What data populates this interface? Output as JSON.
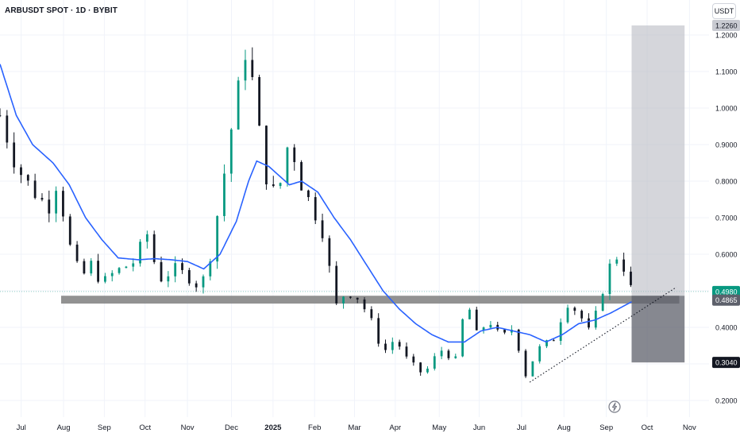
{
  "header": {
    "symbol_title": "ARBUSDT SPOT · 1D · BYBIT",
    "currency_label": "USDT"
  },
  "colors": {
    "background": "#ffffff",
    "grid": "#f0f3fa",
    "up_candle": "#089981",
    "down_candle": "#131722",
    "moving_average": "#2962ff",
    "support_zone": "#7f7f7f",
    "target_zone": "#b2b5be",
    "stop_zone": "#5d606b",
    "current_price_tag": "#089981",
    "trendline": "#131722"
  },
  "chart_data": {
    "type": "candlestick",
    "symbol": "ARBUSDT",
    "exchange": "BYBIT",
    "interval": "1D",
    "x_axis_labels": [
      "Jul",
      "Aug",
      "Sep",
      "Oct",
      "Nov",
      "Dec",
      "2025",
      "Feb",
      "Mar",
      "Apr",
      "May",
      "Jun",
      "Jul",
      "Aug",
      "Sep",
      "Oct",
      "Nov"
    ],
    "y_axis_ticks": [
      "1.2000",
      "1.1000",
      "1.0000",
      "0.9000",
      "0.8000",
      "0.7000",
      "0.6000",
      "0.4000",
      "0.3000",
      "0.2000"
    ],
    "y_axis_tick_values": [
      1.2,
      1.1,
      1.0,
      0.9,
      0.8,
      0.7,
      0.6,
      0.4,
      0.3,
      0.2
    ],
    "ylim": [
      0.18,
      1.26
    ],
    "price_tags": {
      "target": {
        "label": "1.2260",
        "value": 1.226
      },
      "current": {
        "label": "0.4980",
        "value": 0.498
      },
      "entry": {
        "label": "0.4865",
        "value": 0.4865
      },
      "stop": {
        "label": "0.3040",
        "value": 0.304
      }
    },
    "close_series_anchors": [
      {
        "t": 0.0,
        "v": 0.98
      },
      {
        "t": 2.0,
        "v": 0.84
      },
      {
        "t": 4.5,
        "v": 0.76
      },
      {
        "t": 6.0,
        "v": 0.73
      },
      {
        "t": 7.0,
        "v": 0.8
      },
      {
        "t": 8.6,
        "v": 0.62
      },
      {
        "t": 10.0,
        "v": 0.53
      },
      {
        "t": 11.0,
        "v": 0.58
      },
      {
        "t": 12.5,
        "v": 0.52
      },
      {
        "t": 14.0,
        "v": 0.55
      },
      {
        "t": 16.5,
        "v": 0.58
      },
      {
        "t": 18.0,
        "v": 0.66
      },
      {
        "t": 19.5,
        "v": 0.53
      },
      {
        "t": 21.5,
        "v": 0.56
      },
      {
        "t": 23.0,
        "v": 0.54
      },
      {
        "t": 24.5,
        "v": 0.51
      },
      {
        "t": 25.5,
        "v": 0.56
      },
      {
        "t": 27.0,
        "v": 0.75
      },
      {
        "t": 28.5,
        "v": 0.96
      },
      {
        "t": 30.3,
        "v": 1.18
      },
      {
        "t": 31.3,
        "v": 1.02
      },
      {
        "t": 32.5,
        "v": 0.82
      },
      {
        "t": 34.0,
        "v": 0.75
      },
      {
        "t": 35.5,
        "v": 0.92
      },
      {
        "t": 37.0,
        "v": 0.79
      },
      {
        "t": 38.5,
        "v": 0.72
      },
      {
        "t": 40.0,
        "v": 0.64
      },
      {
        "t": 41.0,
        "v": 0.45
      },
      {
        "t": 42.5,
        "v": 0.5
      },
      {
        "t": 44.0,
        "v": 0.48
      },
      {
        "t": 45.5,
        "v": 0.42
      },
      {
        "t": 47.0,
        "v": 0.33
      },
      {
        "t": 48.5,
        "v": 0.37
      },
      {
        "t": 50.0,
        "v": 0.31
      },
      {
        "t": 52.0,
        "v": 0.27
      },
      {
        "t": 54.0,
        "v": 0.34
      },
      {
        "t": 56.0,
        "v": 0.31
      },
      {
        "t": 57.2,
        "v": 0.48
      },
      {
        "t": 58.5,
        "v": 0.38
      },
      {
        "t": 60.0,
        "v": 0.42
      },
      {
        "t": 61.5,
        "v": 0.37
      },
      {
        "t": 63.0,
        "v": 0.4
      },
      {
        "t": 64.5,
        "v": 0.27
      },
      {
        "t": 66.0,
        "v": 0.34
      },
      {
        "t": 68.0,
        "v": 0.37
      },
      {
        "t": 69.5,
        "v": 0.47
      },
      {
        "t": 71.0,
        "v": 0.44
      },
      {
        "t": 72.5,
        "v": 0.38
      },
      {
        "t": 73.5,
        "v": 0.47
      },
      {
        "t": 75.0,
        "v": 0.58
      },
      {
        "t": 76.0,
        "v": 0.6
      },
      {
        "t": 77.5,
        "v": 0.5
      }
    ],
    "moving_average_anchors": [
      {
        "t": 0.0,
        "v": 1.12
      },
      {
        "t": 2.0,
        "v": 0.98
      },
      {
        "t": 4.0,
        "v": 0.9
      },
      {
        "t": 6.5,
        "v": 0.85
      },
      {
        "t": 8.5,
        "v": 0.79
      },
      {
        "t": 10.5,
        "v": 0.7
      },
      {
        "t": 12.5,
        "v": 0.64
      },
      {
        "t": 14.5,
        "v": 0.59
      },
      {
        "t": 17.0,
        "v": 0.585
      },
      {
        "t": 19.0,
        "v": 0.588
      },
      {
        "t": 21.0,
        "v": 0.585
      },
      {
        "t": 23.0,
        "v": 0.58
      },
      {
        "t": 25.0,
        "v": 0.56
      },
      {
        "t": 27.0,
        "v": 0.6
      },
      {
        "t": 29.0,
        "v": 0.69
      },
      {
        "t": 30.5,
        "v": 0.8
      },
      {
        "t": 31.5,
        "v": 0.855
      },
      {
        "t": 33.0,
        "v": 0.84
      },
      {
        "t": 34.5,
        "v": 0.81
      },
      {
        "t": 35.5,
        "v": 0.79
      },
      {
        "t": 37.0,
        "v": 0.8
      },
      {
        "t": 39.0,
        "v": 0.77
      },
      {
        "t": 41.0,
        "v": 0.7
      },
      {
        "t": 43.0,
        "v": 0.64
      },
      {
        "t": 45.0,
        "v": 0.57
      },
      {
        "t": 47.0,
        "v": 0.5
      },
      {
        "t": 49.0,
        "v": 0.45
      },
      {
        "t": 51.0,
        "v": 0.41
      },
      {
        "t": 53.0,
        "v": 0.38
      },
      {
        "t": 55.0,
        "v": 0.36
      },
      {
        "t": 57.0,
        "v": 0.36
      },
      {
        "t": 59.0,
        "v": 0.39
      },
      {
        "t": 61.0,
        "v": 0.4
      },
      {
        "t": 63.0,
        "v": 0.39
      },
      {
        "t": 65.0,
        "v": 0.38
      },
      {
        "t": 67.0,
        "v": 0.36
      },
      {
        "t": 69.0,
        "v": 0.38
      },
      {
        "t": 71.0,
        "v": 0.41
      },
      {
        "t": 73.0,
        "v": 0.42
      },
      {
        "t": 75.0,
        "v": 0.44
      },
      {
        "t": 77.5,
        "v": 0.47
      }
    ],
    "support_zone": {
      "from_t": 7.5,
      "to_t": 77.5,
      "low": 0.465,
      "high": 0.4865
    },
    "position": {
      "from_t": 77.5,
      "to_t": 84.0,
      "entry": 0.4865,
      "target": 1.226,
      "stop": 0.304
    },
    "trendline": {
      "from": {
        "t": 65.0,
        "v": 0.25
      },
      "to": {
        "t": 83.0,
        "v": 0.51
      }
    },
    "x_label_t": [
      2.6,
      7.8,
      12.8,
      17.8,
      23.0,
      28.4,
      33.5,
      38.6,
      43.5,
      48.5,
      53.9,
      58.8,
      64.0,
      69.2,
      74.4,
      79.4,
      84.6
    ],
    "t_per_candle": 0.1,
    "x_start_t": 0.0,
    "x_end_t": 77.5
  }
}
